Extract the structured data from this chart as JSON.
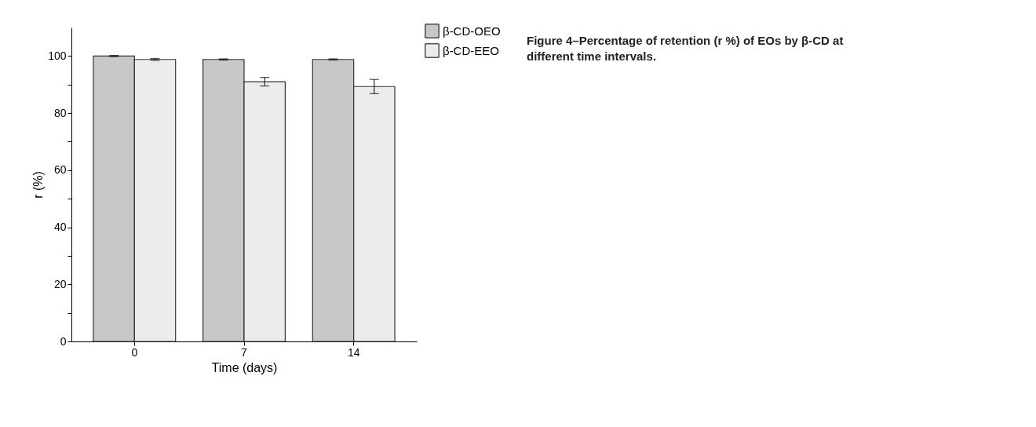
{
  "chart_data": {
    "type": "bar",
    "xlabel": "Time (days)",
    "ylabel": "r (%)",
    "categories": [
      "0",
      "7",
      "14"
    ],
    "series": [
      {
        "name": "β-CD-OEO",
        "color": "#c8c8c8",
        "values": [
          100,
          98.8,
          98.8
        ],
        "errors": [
          0.2,
          0.2,
          0.2
        ]
      },
      {
        "name": "β-CD-EEO",
        "color": "#ececec",
        "values": [
          98.8,
          91,
          89.3
        ],
        "errors": [
          0.3,
          1.5,
          2.5
        ]
      }
    ],
    "ylim": [
      0,
      110
    ],
    "yticks": [
      0,
      {
        "value": 10,
        "label": null
      },
      20,
      {
        "value": 30,
        "label": null
      },
      40,
      {
        "value": 50,
        "label": null
      },
      60,
      {
        "value": 70,
        "label": null
      },
      80,
      {
        "value": 90,
        "label": null
      },
      100
    ],
    "grid": false,
    "legend": "top right",
    "annotations": [
      "Figure 4–Percentage of retention (r %) of EOs by β-CD at different time intervals."
    ]
  }
}
